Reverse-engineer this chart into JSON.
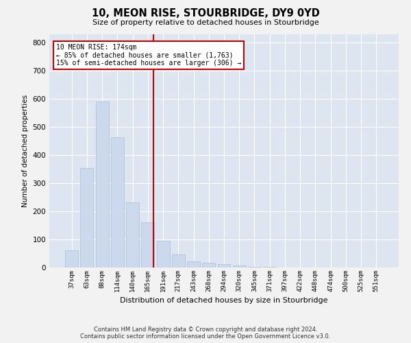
{
  "title": "10, MEON RISE, STOURBRIDGE, DY9 0YD",
  "subtitle": "Size of property relative to detached houses in Stourbridge",
  "xlabel": "Distribution of detached houses by size in Stourbridge",
  "ylabel": "Number of detached properties",
  "footer_line1": "Contains HM Land Registry data © Crown copyright and database right 2024.",
  "footer_line2": "Contains public sector information licensed under the Open Government Licence v3.0.",
  "bar_color": "#ccd9ed",
  "bar_edgecolor": "#aabdd9",
  "background_color": "#dde6f0",
  "grid_color": "#ffffff",
  "annotation_text": "10 MEON RISE: 174sqm\n← 85% of detached houses are smaller (1,763)\n15% of semi-detached houses are larger (306) →",
  "vline_color": "#cc0000",
  "vline_x_index": 5,
  "categories": [
    "37sqm",
    "63sqm",
    "88sqm",
    "114sqm",
    "140sqm",
    "165sqm",
    "191sqm",
    "217sqm",
    "243sqm",
    "268sqm",
    "294sqm",
    "320sqm",
    "345sqm",
    "371sqm",
    "397sqm",
    "422sqm",
    "448sqm",
    "474sqm",
    "500sqm",
    "525sqm",
    "551sqm"
  ],
  "values": [
    60,
    355,
    590,
    463,
    232,
    162,
    95,
    47,
    22,
    17,
    13,
    8,
    3,
    2,
    1,
    1,
    1,
    0,
    0,
    1,
    1
  ],
  "ylim": [
    0,
    830
  ],
  "yticks": [
    0,
    100,
    200,
    300,
    400,
    500,
    600,
    700,
    800
  ],
  "fig_width": 6.0,
  "fig_height": 5.0,
  "dpi": 100
}
